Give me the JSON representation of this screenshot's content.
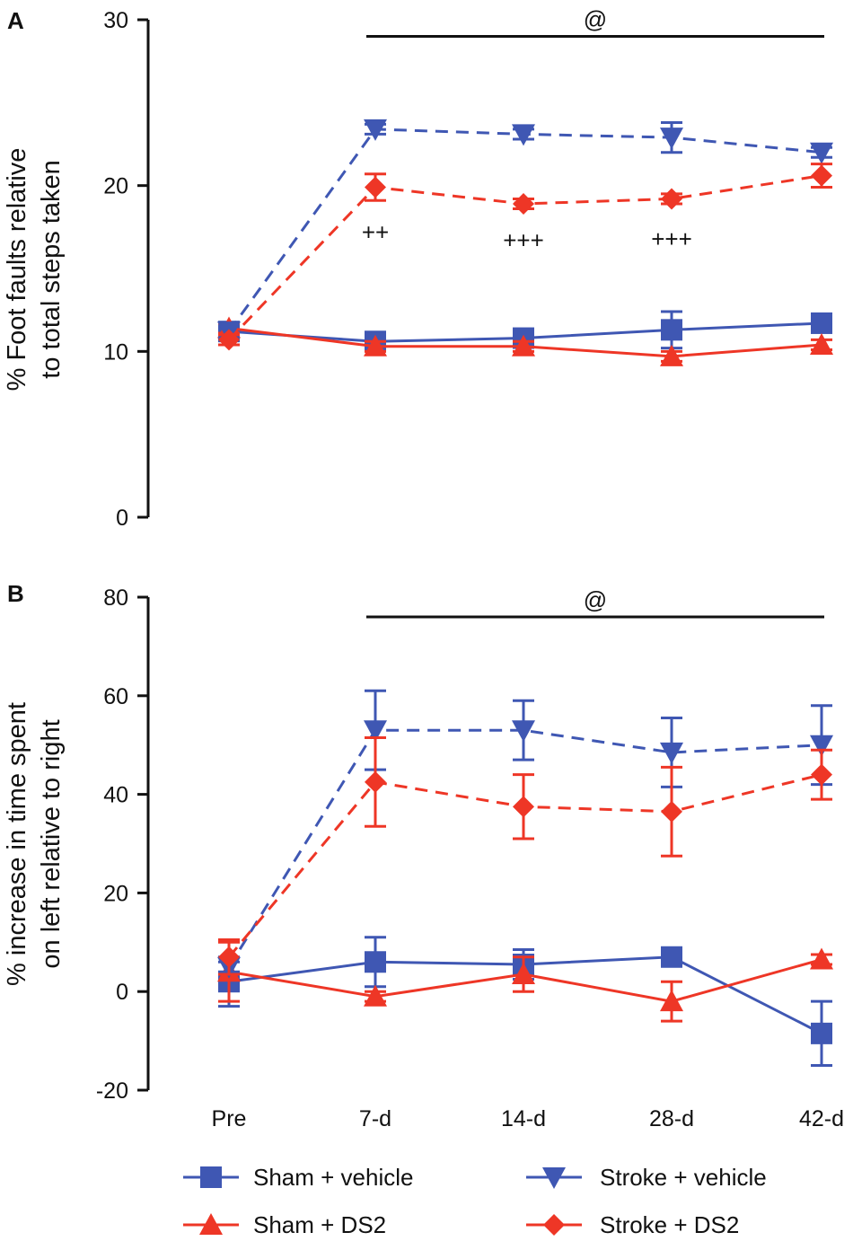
{
  "x_categories": [
    "Pre",
    "7-d",
    "14-d",
    "28-d",
    "42-d"
  ],
  "series_styles": [
    {
      "key": "sham_vehicle",
      "color": "#3f57b3",
      "dashed": false,
      "marker": "square"
    },
    {
      "key": "sham_ds2",
      "color": "#ee3626",
      "dashed": false,
      "marker": "triangle-up"
    },
    {
      "key": "stroke_vehicle",
      "color": "#3f57b3",
      "dashed": true,
      "marker": "triangle-down"
    },
    {
      "key": "stroke_ds2",
      "color": "#ee3626",
      "dashed": true,
      "marker": "diamond"
    }
  ],
  "legend": {
    "sham_vehicle": "Sham + vehicle",
    "sham_ds2": "Sham + DS2",
    "stroke_vehicle": "Stroke + vehicle",
    "stroke_ds2": "Stroke + DS2"
  },
  "chart_data": [
    {
      "type": "line",
      "panel": "A",
      "ylabel_lines": [
        "% Foot faults relative",
        "to total steps taken"
      ],
      "ylim": [
        0,
        30
      ],
      "yticks": [
        0,
        10,
        20,
        30
      ],
      "significance_bar": {
        "label": "@",
        "from": "7-d",
        "to": "42-d",
        "y": 29
      },
      "annotations": [
        {
          "text": "++",
          "x": "7-d",
          "y": 17.2
        },
        {
          "text": "+++",
          "x": "14-d",
          "y": 16.7
        },
        {
          "text": "+++",
          "x": "28-d",
          "y": 16.8
        }
      ],
      "series": [
        {
          "name": "Sham + vehicle",
          "key": "sham_vehicle",
          "values": [
            11.2,
            10.6,
            10.8,
            11.3,
            11.7
          ],
          "errors": [
            0.3,
            0.3,
            0.3,
            1.1,
            0.3
          ]
        },
        {
          "name": "Sham + DS2",
          "key": "sham_ds2",
          "values": [
            11.4,
            10.3,
            10.3,
            9.7,
            10.4
          ],
          "errors": [
            0.3,
            0.3,
            0.3,
            0.3,
            0.3
          ]
        },
        {
          "name": "Stroke + vehicle",
          "key": "stroke_vehicle",
          "values": [
            11.2,
            23.4,
            23.1,
            22.9,
            22.0
          ],
          "errors": [
            0.3,
            0.3,
            0.3,
            0.9,
            0.3
          ]
        },
        {
          "name": "Stroke + DS2",
          "key": "stroke_ds2",
          "values": [
            10.7,
            19.9,
            18.9,
            19.2,
            20.6
          ],
          "errors": [
            0.3,
            0.8,
            0.3,
            0.3,
            0.7
          ]
        }
      ]
    },
    {
      "type": "line",
      "panel": "B",
      "ylabel_lines": [
        "% increase in time spent",
        "on left relative to right"
      ],
      "ylim": [
        -20,
        80
      ],
      "yticks": [
        -20,
        0,
        20,
        40,
        60,
        80
      ],
      "significance_bar": {
        "label": "@",
        "from": "7-d",
        "to": "42-d",
        "y": 76
      },
      "annotations": [],
      "series": [
        {
          "name": "Sham + vehicle",
          "key": "sham_vehicle",
          "values": [
            2,
            6,
            5.5,
            7,
            -8.5
          ],
          "errors": [
            5,
            5,
            3,
            1,
            6.5
          ]
        },
        {
          "name": "Sham + DS2",
          "key": "sham_ds2",
          "values": [
            4,
            -1,
            3.5,
            -2,
            6.5
          ],
          "errors": [
            6,
            1,
            3.5,
            4,
            1
          ]
        },
        {
          "name": "Stroke + vehicle",
          "key": "stroke_vehicle",
          "values": [
            5,
            53,
            53,
            48.5,
            50
          ],
          "errors": [
            1,
            8,
            6,
            7,
            8
          ]
        },
        {
          "name": "Stroke + DS2",
          "key": "stroke_ds2",
          "values": [
            7,
            42.5,
            37.5,
            36.5,
            44
          ],
          "errors": [
            3.5,
            9,
            6.5,
            9,
            5
          ]
        }
      ]
    }
  ]
}
